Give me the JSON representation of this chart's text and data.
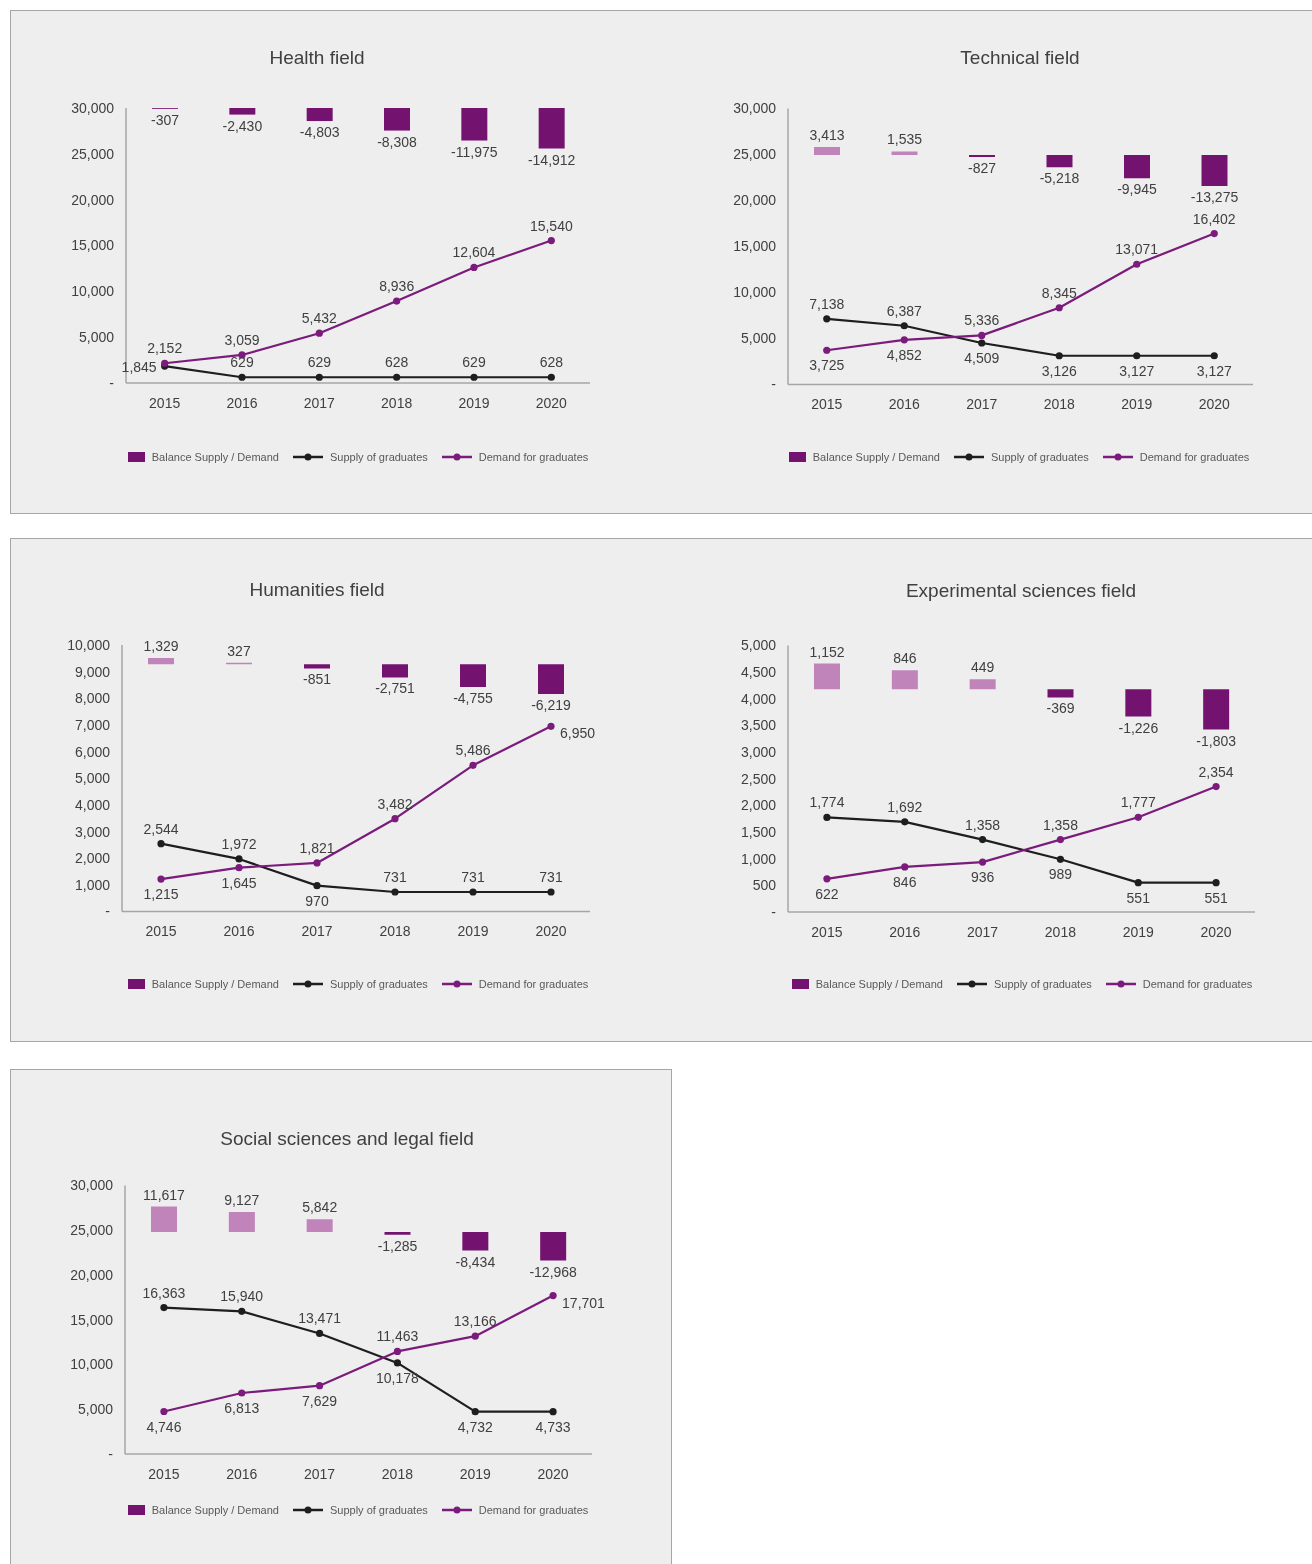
{
  "chart_data": [
    {
      "type": "line",
      "title": "Health field",
      "categories": [
        "2015",
        "2016",
        "2017",
        "2018",
        "2019",
        "2020"
      ],
      "series": [
        {
          "name": "Balance Supply / Demand",
          "type": "bar",
          "axis": "y2",
          "color": "#73136f",
          "colors": [
            "#73136f",
            "#73136f",
            "#73136f",
            "#73136f",
            "#73136f",
            "#73136f"
          ],
          "values": [
            -307,
            -2430,
            -4803,
            -8308,
            -11975,
            -14912
          ],
          "value_labels": [
            "-307",
            "-2,430",
            "-4,803",
            "-8,308",
            "-11,975",
            "-14,912"
          ]
        },
        {
          "name": "Supply of graduates",
          "color": "#1e1e1e",
          "values": [
            1845,
            629,
            629,
            628,
            629,
            628
          ],
          "value_labels": [
            "1,845",
            "629",
            "629",
            "628",
            "629",
            "628"
          ]
        },
        {
          "name": "Demand for graduates",
          "color": "#7b1b7b",
          "values": [
            2152,
            3059,
            5432,
            8936,
            12604,
            15540
          ],
          "value_labels": [
            "2,152",
            "3,059",
            "5,432",
            "8,936",
            "12,604",
            "15,540"
          ]
        }
      ],
      "ylim": [
        0,
        30000
      ],
      "yticks": [
        {
          "value": 0,
          "label": "-"
        },
        {
          "value": 5000,
          "label": "5,000"
        },
        {
          "value": 10000,
          "label": "10,000"
        },
        {
          "value": 15000,
          "label": "15,000"
        },
        {
          "value": 20000,
          "label": "20,000"
        },
        {
          "value": 25000,
          "label": "25,000"
        },
        {
          "value": 30000,
          "label": "30,000"
        }
      ],
      "tick_labels": "xy",
      "legend": "bottom",
      "marker": "circle"
    },
    {
      "type": "line",
      "title": "Technical field",
      "categories": [
        "2015",
        "2016",
        "2017",
        "2018",
        "2019",
        "2020"
      ],
      "series": [
        {
          "name": "Balance Supply / Demand",
          "type": "bar",
          "axis": "y2",
          "color": "#73136f",
          "colors": [
            "#c083ba",
            "#c083ba",
            "#73136f",
            "#73136f",
            "#73136f",
            "#73136f"
          ],
          "values": [
            3413,
            1535,
            -827,
            -5218,
            -9945,
            -13275
          ],
          "value_labels": [
            "3,413",
            "1,535",
            "-827",
            "-5,218",
            "-9,945",
            "-13,275"
          ]
        },
        {
          "name": "Supply of graduates",
          "color": "#1e1e1e",
          "values": [
            7138,
            6387,
            4509,
            3126,
            3127,
            3127
          ],
          "value_labels": [
            "7,138",
            "6,387",
            "4,509",
            "3,126",
            "3,127",
            "3,127"
          ]
        },
        {
          "name": "Demand for graduates",
          "color": "#7b1b7b",
          "values": [
            3725,
            4852,
            5336,
            8345,
            13071,
            16402
          ],
          "value_labels": [
            "3,725",
            "4,852",
            "5,336",
            "8,345",
            "13,071",
            "16,402"
          ]
        }
      ],
      "ylim": [
        0,
        30000
      ],
      "yticks": [
        {
          "value": 0,
          "label": "-"
        },
        {
          "value": 5000,
          "label": "5,000"
        },
        {
          "value": 10000,
          "label": "10,000"
        },
        {
          "value": 15000,
          "label": "15,000"
        },
        {
          "value": 20000,
          "label": "20,000"
        },
        {
          "value": 25000,
          "label": "25,000"
        },
        {
          "value": 30000,
          "label": "30,000"
        }
      ],
      "tick_labels": "xy",
      "legend": "bottom",
      "marker": "circle"
    },
    {
      "type": "line",
      "title": "Humanities field",
      "categories": [
        "2015",
        "2016",
        "2017",
        "2018",
        "2019",
        "2020"
      ],
      "series": [
        {
          "name": "Balance Supply / Demand",
          "type": "bar",
          "axis": "y2",
          "color": "#73136f",
          "colors": [
            "#c083ba",
            "#c083ba",
            "#73136f",
            "#73136f",
            "#73136f",
            "#73136f"
          ],
          "values": [
            1329,
            327,
            -851,
            -2751,
            -4755,
            -6219
          ],
          "value_labels": [
            "1,329",
            "327",
            "-851",
            "-2,751",
            "-4,755",
            "-6,219"
          ]
        },
        {
          "name": "Supply of graduates",
          "color": "#1e1e1e",
          "values": [
            2544,
            1972,
            970,
            731,
            731,
            731
          ],
          "value_labels": [
            "2,544",
            "1,972",
            "970",
            "731",
            "731",
            "731"
          ]
        },
        {
          "name": "Demand for graduates",
          "color": "#7b1b7b",
          "values": [
            1215,
            1645,
            1821,
            3482,
            5486,
            6950
          ],
          "value_labels": [
            "1,215",
            "1,645",
            "1,821",
            "3,482",
            "5,486",
            "6,950"
          ]
        }
      ],
      "ylim": [
        0,
        10000
      ],
      "yticks": [
        {
          "value": 0,
          "label": "-"
        },
        {
          "value": 1000,
          "label": "1,000"
        },
        {
          "value": 2000,
          "label": "2,000"
        },
        {
          "value": 3000,
          "label": "3,000"
        },
        {
          "value": 4000,
          "label": "4,000"
        },
        {
          "value": 5000,
          "label": "5,000"
        },
        {
          "value": 6000,
          "label": "6,000"
        },
        {
          "value": 7000,
          "label": "7,000"
        },
        {
          "value": 8000,
          "label": "8,000"
        },
        {
          "value": 9000,
          "label": "9,000"
        },
        {
          "value": 10000,
          "label": "10,000"
        }
      ],
      "tick_labels": "xy",
      "legend": "bottom",
      "marker": "circle"
    },
    {
      "type": "line",
      "title": "Experimental sciences field",
      "categories": [
        "2015",
        "2016",
        "2017",
        "2018",
        "2019",
        "2020"
      ],
      "series": [
        {
          "name": "Balance Supply / Demand",
          "type": "bar",
          "axis": "y2",
          "color": "#73136f",
          "colors": [
            "#c083ba",
            "#c083ba",
            "#c083ba",
            "#73136f",
            "#73136f",
            "#73136f"
          ],
          "values": [
            1152,
            846,
            449,
            -369,
            -1226,
            -1803
          ],
          "value_labels": [
            "1,152",
            "846",
            "449",
            "-369",
            "-1,226",
            "-1,803"
          ]
        },
        {
          "name": "Supply of graduates",
          "color": "#1e1e1e",
          "values": [
            1774,
            1692,
            1358,
            989,
            551,
            551
          ],
          "value_labels": [
            "1,774",
            "1,692",
            "1,358",
            "989",
            "551",
            "551"
          ]
        },
        {
          "name": "Demand for graduates",
          "color": "#7b1b7b",
          "values": [
            622,
            846,
            936,
            1358,
            1777,
            2354
          ],
          "value_labels": [
            "622",
            "846",
            "936",
            "1,358",
            "1,777",
            "2,354"
          ]
        }
      ],
      "ylim": [
        0,
        5000
      ],
      "yticks": [
        {
          "value": 0,
          "label": "-"
        },
        500,
        {
          "value": 1000,
          "label": "1,000"
        },
        {
          "value": 1500,
          "label": "1,500"
        },
        {
          "value": 2000,
          "label": "2,000"
        },
        {
          "value": 2500,
          "label": "2,500"
        },
        {
          "value": 3000,
          "label": "3,000"
        },
        {
          "value": 3500,
          "label": "3,500"
        },
        {
          "value": 4000,
          "label": "4,000"
        },
        {
          "value": 4500,
          "label": "4,500"
        },
        {
          "value": 5000,
          "label": "5,000"
        }
      ],
      "tick_labels": "xy",
      "legend": "bottom",
      "marker": "circle"
    },
    {
      "type": "line",
      "title": "Social sciences and legal field",
      "categories": [
        "2015",
        "2016",
        "2017",
        "2018",
        "2019",
        "2020"
      ],
      "series": [
        {
          "name": "Balance Supply / Demand",
          "type": "bar",
          "axis": "y2",
          "color": "#73136f",
          "colors": [
            "#c083ba",
            "#c083ba",
            "#c083ba",
            "#73136f",
            "#73136f",
            "#73136f"
          ],
          "values": [
            11617,
            9127,
            5842,
            -1285,
            -8434,
            -12968
          ],
          "value_labels": [
            "11,617",
            "9,127",
            "5,842",
            "-1,285",
            "-8,434",
            "-12,968"
          ]
        },
        {
          "name": "Supply of graduates",
          "color": "#1e1e1e",
          "values": [
            16363,
            15940,
            13471,
            10178,
            4732,
            4733
          ],
          "value_labels": [
            "16,363",
            "15,940",
            "13,471",
            "10,178",
            "4,732",
            "4,733"
          ]
        },
        {
          "name": "Demand for graduates",
          "color": "#7b1b7b",
          "values": [
            4746,
            6813,
            7629,
            11463,
            13166,
            17701
          ],
          "value_labels": [
            "4,746",
            "6,813",
            "7,629",
            "11,463",
            "13,166",
            "17,701"
          ]
        }
      ],
      "ylim": [
        0,
        30000
      ],
      "yticks": [
        {
          "value": 0,
          "label": "-"
        },
        {
          "value": 5000,
          "label": "5,000"
        },
        {
          "value": 10000,
          "label": "10,000"
        },
        {
          "value": 15000,
          "label": "15,000"
        },
        {
          "value": 20000,
          "label": "20,000"
        },
        {
          "value": 25000,
          "label": "25,000"
        },
        {
          "value": 30000,
          "label": "30,000"
        }
      ],
      "tick_labels": "xy",
      "legend": "bottom",
      "marker": "circle"
    }
  ]
}
